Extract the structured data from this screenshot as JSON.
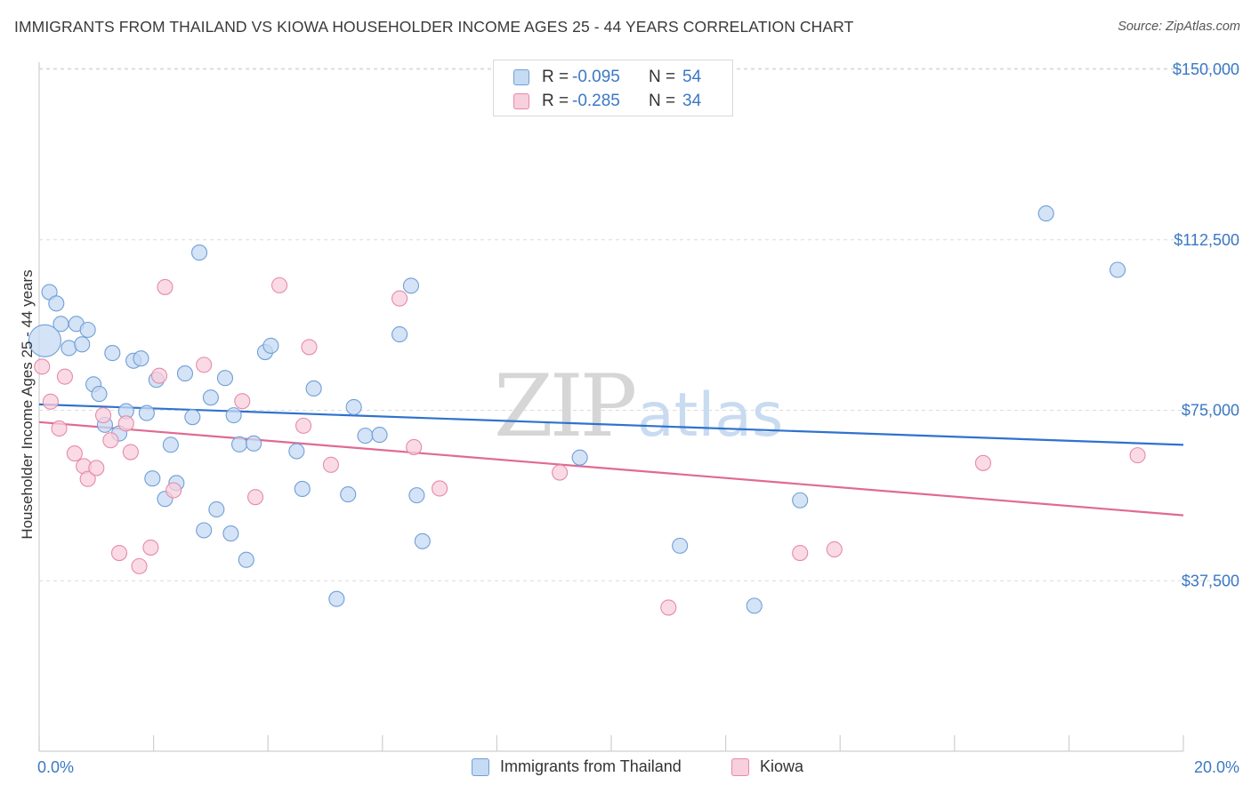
{
  "header": {
    "title": "IMMIGRANTS FROM THAILAND VS KIOWA HOUSEHOLDER INCOME AGES 25 - 44 YEARS CORRELATION CHART",
    "source": "Source: ZipAtlas.com"
  },
  "watermark": {
    "zip": "ZIP",
    "atlas": "atlas"
  },
  "legend": {
    "series1": {
      "r_label": "R =",
      "r_value": "-0.095",
      "n_label": "N =",
      "n_value": "54"
    },
    "series2": {
      "r_label": "R =",
      "r_value": "-0.285",
      "n_label": "N =",
      "n_value": "34"
    }
  },
  "colors": {
    "blue_fill": "#c5daf3",
    "blue_stroke": "#6f9fd8",
    "blue_line": "#2f72cf",
    "pink_fill": "#f8cfdc",
    "pink_stroke": "#e68aa8",
    "pink_line": "#e06a93",
    "tick_text": "#3b78c4",
    "grid": "#dcdcdc"
  },
  "chart_data": {
    "type": "scatter",
    "title": "IMMIGRANTS FROM THAILAND VS KIOWA HOUSEHOLDER INCOME AGES 25 - 44 YEARS CORRELATION CHART",
    "xlabel": "",
    "ylabel": "Householder Income Ages 25 - 44 years",
    "xlim": [
      0,
      20
    ],
    "ylim": [
      0,
      155000
    ],
    "x_tick_labels": [
      {
        "value": 0,
        "label": "0.0%"
      },
      {
        "value": 20,
        "label": "20.0%"
      }
    ],
    "y_ticks": [
      {
        "value": 37500,
        "label": "$37,500"
      },
      {
        "value": 75000,
        "label": "$75,000"
      },
      {
        "value": 112500,
        "label": "$112,500"
      },
      {
        "value": 150000,
        "label": "$150,000"
      }
    ],
    "grid": true,
    "legend_position": "top-center",
    "series": [
      {
        "name": "Immigrants from Thailand",
        "color": "#6f9fd8",
        "R": -0.095,
        "N": 54,
        "trend": {
          "x": [
            0,
            20
          ],
          "y": [
            76300,
            67400
          ]
        },
        "points": [
          {
            "x": 0.1,
            "y": 90300,
            "big": true
          },
          {
            "x": 0.18,
            "y": 101000
          },
          {
            "x": 0.3,
            "y": 98500
          },
          {
            "x": 0.38,
            "y": 94000
          },
          {
            "x": 0.52,
            "y": 88700
          },
          {
            "x": 0.65,
            "y": 94000
          },
          {
            "x": 0.75,
            "y": 89500
          },
          {
            "x": 0.85,
            "y": 92700
          },
          {
            "x": 0.95,
            "y": 80700
          },
          {
            "x": 1.05,
            "y": 78600
          },
          {
            "x": 1.15,
            "y": 71800
          },
          {
            "x": 1.28,
            "y": 87600
          },
          {
            "x": 1.4,
            "y": 69900
          },
          {
            "x": 1.52,
            "y": 74800
          },
          {
            "x": 1.65,
            "y": 85900
          },
          {
            "x": 1.78,
            "y": 86400
          },
          {
            "x": 1.88,
            "y": 74400
          },
          {
            "x": 1.98,
            "y": 60000
          },
          {
            "x": 2.05,
            "y": 81700
          },
          {
            "x": 2.2,
            "y": 55500
          },
          {
            "x": 2.3,
            "y": 67400
          },
          {
            "x": 2.4,
            "y": 59000
          },
          {
            "x": 2.55,
            "y": 83100
          },
          {
            "x": 2.68,
            "y": 73500
          },
          {
            "x": 2.8,
            "y": 109700
          },
          {
            "x": 2.88,
            "y": 48600
          },
          {
            "x": 3.0,
            "y": 77800
          },
          {
            "x": 3.1,
            "y": 53200
          },
          {
            "x": 3.25,
            "y": 82100
          },
          {
            "x": 3.35,
            "y": 47900
          },
          {
            "x": 3.4,
            "y": 73900
          },
          {
            "x": 3.5,
            "y": 67500
          },
          {
            "x": 3.62,
            "y": 42100
          },
          {
            "x": 3.75,
            "y": 67700
          },
          {
            "x": 3.95,
            "y": 87800
          },
          {
            "x": 4.05,
            "y": 89200
          },
          {
            "x": 4.5,
            "y": 66000
          },
          {
            "x": 4.6,
            "y": 57700
          },
          {
            "x": 4.8,
            "y": 79800
          },
          {
            "x": 5.2,
            "y": 33500
          },
          {
            "x": 5.4,
            "y": 56500
          },
          {
            "x": 5.5,
            "y": 75700
          },
          {
            "x": 5.7,
            "y": 69400
          },
          {
            "x": 5.95,
            "y": 69600
          },
          {
            "x": 6.3,
            "y": 91700
          },
          {
            "x": 6.5,
            "y": 102400
          },
          {
            "x": 6.6,
            "y": 56300
          },
          {
            "x": 6.7,
            "y": 46200
          },
          {
            "x": 9.45,
            "y": 64600
          },
          {
            "x": 11.2,
            "y": 45200
          },
          {
            "x": 12.5,
            "y": 32000
          },
          {
            "x": 13.3,
            "y": 55200
          },
          {
            "x": 17.6,
            "y": 118300
          },
          {
            "x": 18.85,
            "y": 105900
          }
        ]
      },
      {
        "name": "Kiowa",
        "color": "#e68aa8",
        "R": -0.285,
        "N": 34,
        "trend": {
          "x": [
            0,
            20
          ],
          "y": [
            72400,
            51900
          ]
        },
        "points": [
          {
            "x": 0.05,
            "y": 84600
          },
          {
            "x": 0.2,
            "y": 76900
          },
          {
            "x": 0.35,
            "y": 71000
          },
          {
            "x": 0.45,
            "y": 82400
          },
          {
            "x": 0.62,
            "y": 65500
          },
          {
            "x": 0.78,
            "y": 62700
          },
          {
            "x": 0.85,
            "y": 59900
          },
          {
            "x": 1.0,
            "y": 62300
          },
          {
            "x": 1.12,
            "y": 73900
          },
          {
            "x": 1.25,
            "y": 68400
          },
          {
            "x": 1.4,
            "y": 43600
          },
          {
            "x": 1.52,
            "y": 72100
          },
          {
            "x": 1.6,
            "y": 65800
          },
          {
            "x": 1.75,
            "y": 40700
          },
          {
            "x": 1.95,
            "y": 44800
          },
          {
            "x": 2.1,
            "y": 82600
          },
          {
            "x": 2.2,
            "y": 102100
          },
          {
            "x": 2.35,
            "y": 57400
          },
          {
            "x": 2.88,
            "y": 85000
          },
          {
            "x": 3.55,
            "y": 77000
          },
          {
            "x": 3.78,
            "y": 55900
          },
          {
            "x": 4.2,
            "y": 102500
          },
          {
            "x": 4.62,
            "y": 71600
          },
          {
            "x": 4.72,
            "y": 88900
          },
          {
            "x": 5.1,
            "y": 63000
          },
          {
            "x": 6.3,
            "y": 99600
          },
          {
            "x": 6.55,
            "y": 66900
          },
          {
            "x": 7.0,
            "y": 57800
          },
          {
            "x": 9.1,
            "y": 61300
          },
          {
            "x": 11.0,
            "y": 31600
          },
          {
            "x": 13.3,
            "y": 43600
          },
          {
            "x": 13.9,
            "y": 44400
          },
          {
            "x": 16.5,
            "y": 63400
          },
          {
            "x": 19.2,
            "y": 65100
          }
        ]
      }
    ]
  },
  "bottom_legend": {
    "item1": "Immigrants from Thailand",
    "item2": "Kiowa"
  }
}
